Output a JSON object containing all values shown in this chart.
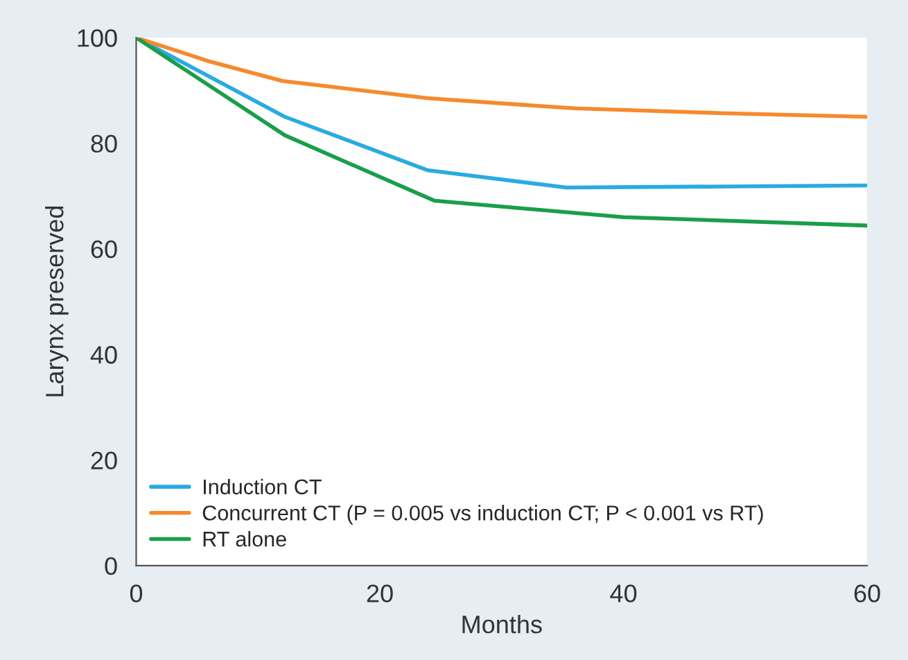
{
  "chart_data": {
    "type": "line",
    "xlabel": "Months",
    "ylabel": "Larynx preserved",
    "xlim": [
      0,
      60
    ],
    "xticks": [
      0,
      20,
      40,
      60
    ],
    "ylim": [
      0,
      100
    ],
    "yticks": [
      0,
      20,
      40,
      60,
      80,
      100
    ],
    "grid": false,
    "legend": "bottom left",
    "marker": "none",
    "line_style": "solid",
    "series": [
      {
        "name": "Induction CT",
        "color": "#29abe2",
        "x": [
          0,
          12.2,
          23.9,
          35.3,
          60
        ],
        "values": [
          100,
          85,
          74.9,
          71.6,
          72
        ]
      },
      {
        "name": "Concurrent CT (P = 0.005 vs induction CT; P < 0.001 vs RT)",
        "color": "#f7892e",
        "x": [
          0,
          6,
          12,
          24,
          36,
          48,
          60
        ],
        "values": [
          100,
          95.5,
          91.8,
          88.5,
          86.6,
          85.7,
          85
        ]
      },
      {
        "name": "RT alone",
        "color": "#1a9e4a",
        "x": [
          0,
          12.2,
          24.5,
          40,
          60
        ],
        "values": [
          100,
          81.5,
          69.1,
          66,
          64.4
        ]
      }
    ]
  }
}
